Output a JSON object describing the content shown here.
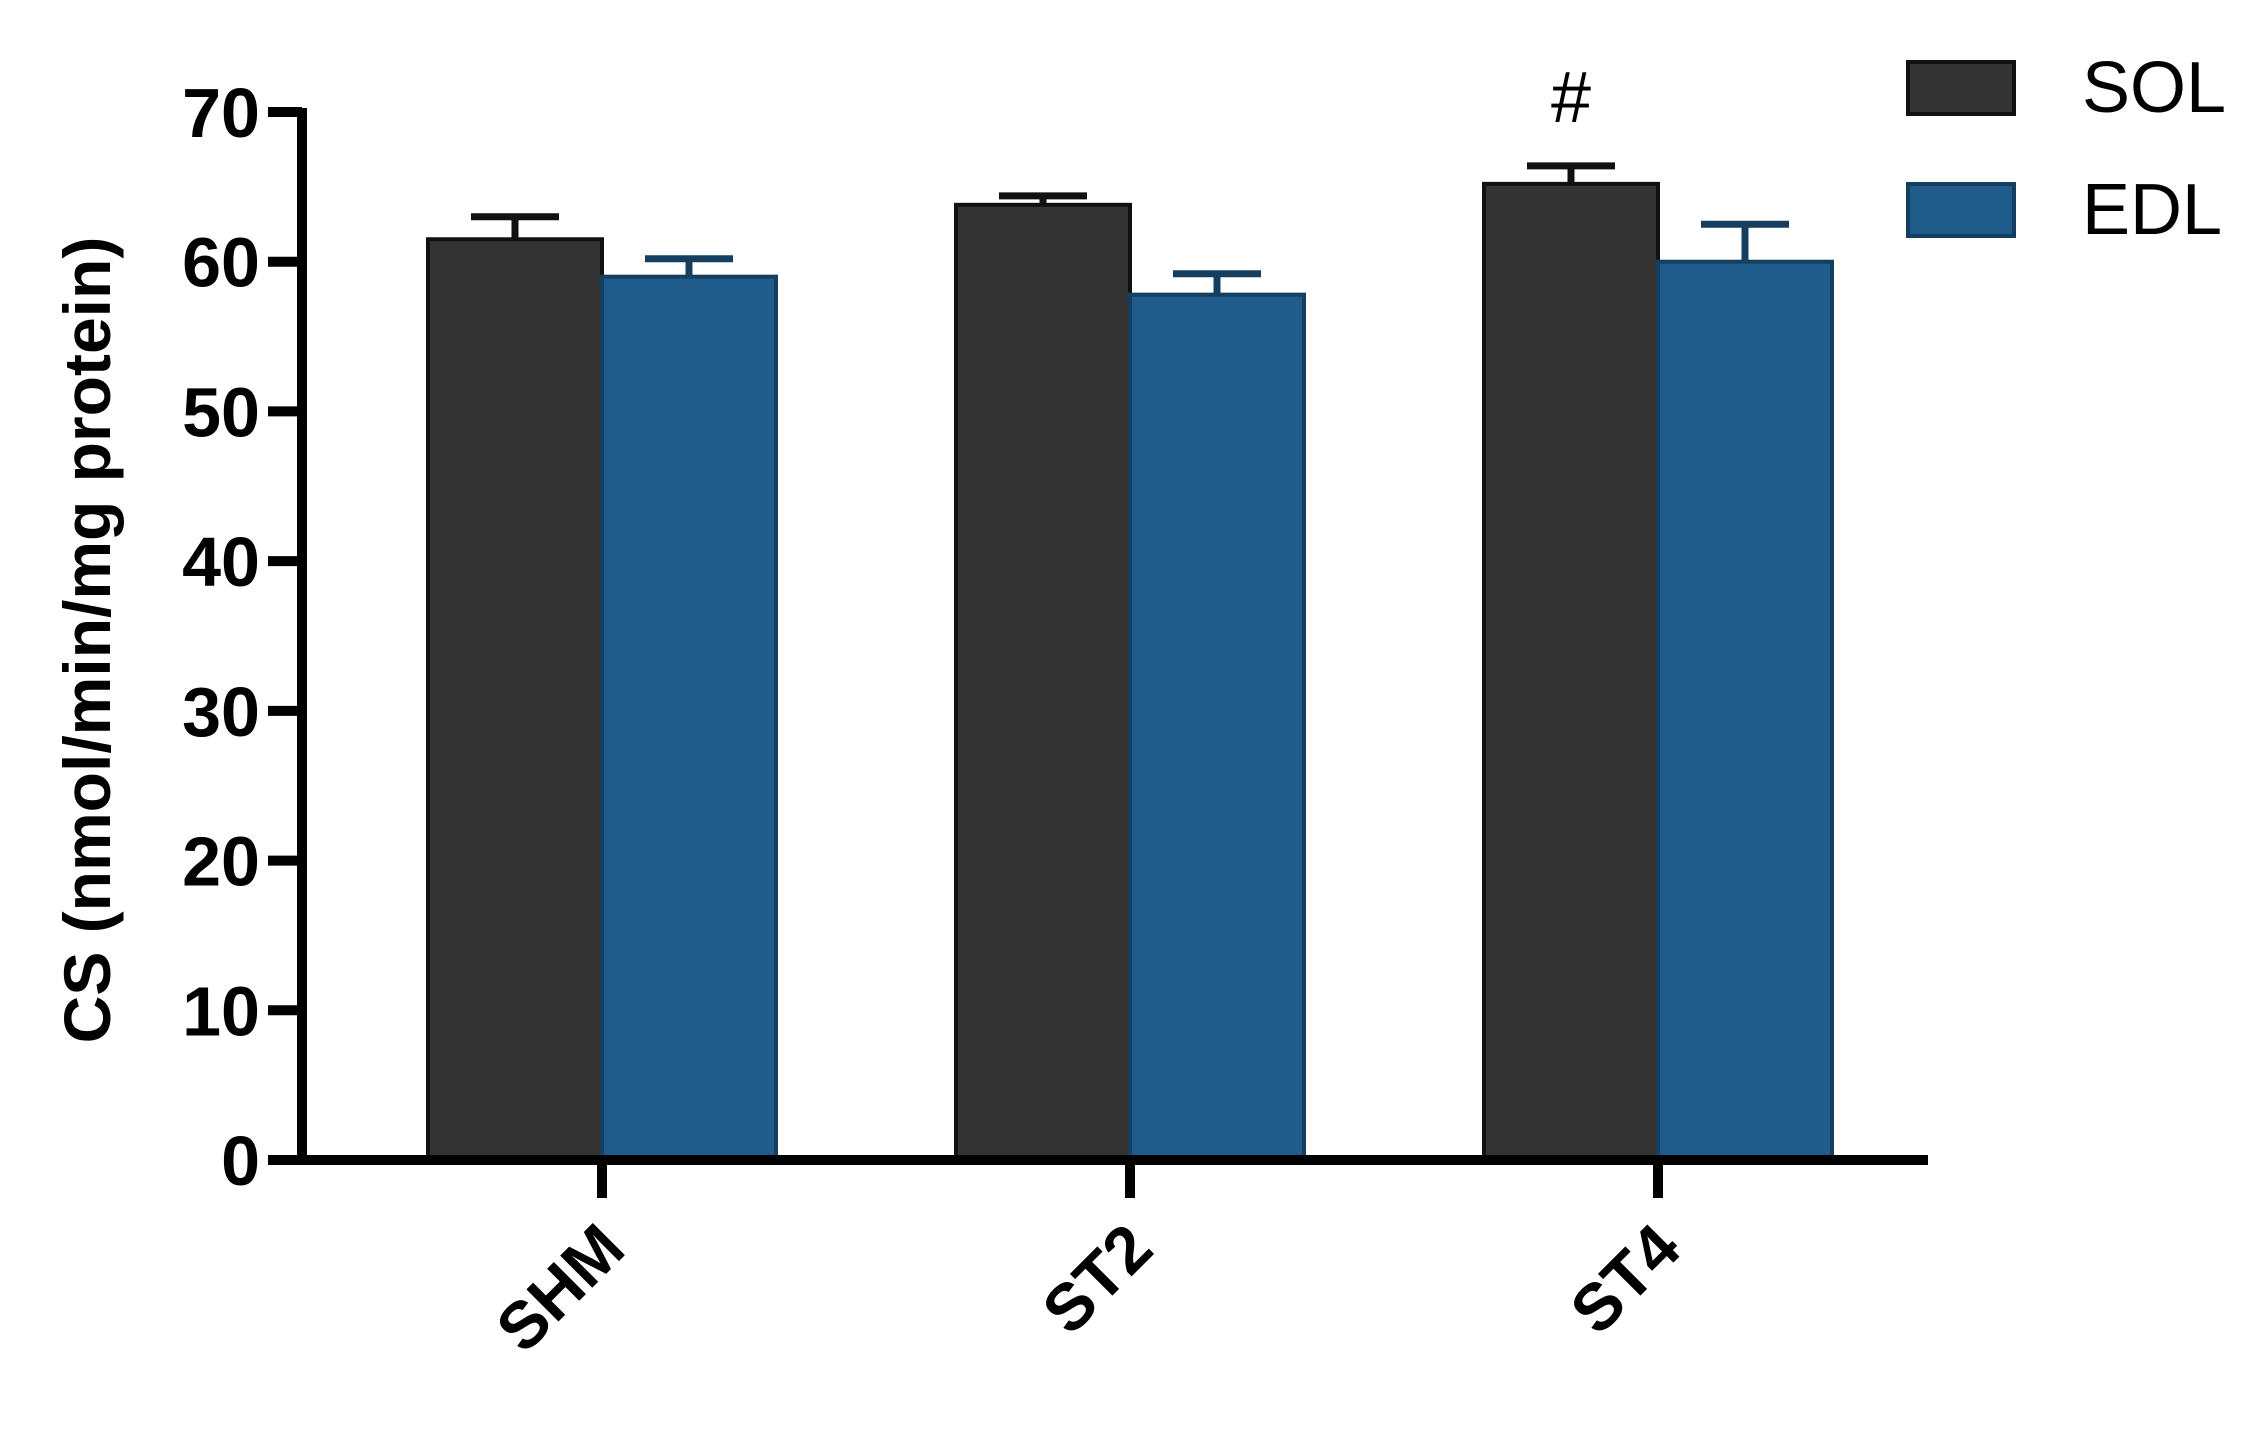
{
  "chart_data": {
    "type": "bar",
    "title": "",
    "xlabel": "",
    "ylabel": "CS (nmol/min/mg protein)",
    "ylim": [
      0,
      70
    ],
    "yticks": [
      0,
      10,
      20,
      30,
      40,
      50,
      60,
      70
    ],
    "categories": [
      "SHM",
      "ST2",
      "ST4"
    ],
    "grid": false,
    "legend_position": "top-right",
    "series": [
      {
        "name": "SOL",
        "color": "#333333",
        "edge_color": "#111111",
        "values": [
          61.5,
          63.8,
          65.2
        ],
        "errors": [
          1.5,
          0.6,
          1.2
        ]
      },
      {
        "name": "EDL",
        "color": "#1f5b8b",
        "edge_color": "#163f5f",
        "values": [
          59.0,
          57.8,
          60.0
        ],
        "errors": [
          1.2,
          1.4,
          2.5
        ]
      }
    ],
    "annotations": [
      {
        "text": "#",
        "category": "ST4",
        "series": "SOL"
      }
    ]
  }
}
